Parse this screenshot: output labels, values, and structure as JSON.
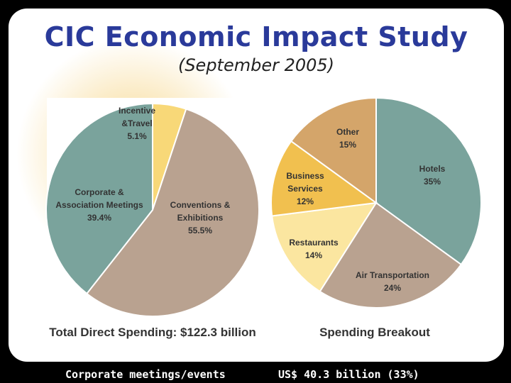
{
  "slide": {
    "title": "CIC Economic Impact Study",
    "subtitle": "(September 2005)",
    "footer_left": "Corporate meetings/events",
    "footer_right": "US$ 40.3 billion (33%)"
  },
  "chart_data": [
    {
      "type": "pie",
      "title": "Total Direct Spending: $122.3 billion",
      "slices": [
        {
          "name": "Incentive &Travel",
          "value": 5.1,
          "label_lines": [
            "Incentive",
            "&Travel",
            "5.1%"
          ],
          "color": "#f8d878"
        },
        {
          "name": "Conventions & Exhibitions",
          "value": 55.5,
          "label_lines": [
            "Conventions &",
            "Exhibitions",
            "55.5%"
          ],
          "color": "#b9a290"
        },
        {
          "name": "Corporate & Association Meetings",
          "value": 39.4,
          "label_lines": [
            "Corporate &",
            "Association Meetings",
            "39.4%"
          ],
          "color": "#7aa39c"
        }
      ]
    },
    {
      "type": "pie",
      "title": "Spending Breakout",
      "slices": [
        {
          "name": "Hotels",
          "value": 35,
          "label_lines": [
            "Hotels",
            "35%"
          ],
          "color": "#7aa39c"
        },
        {
          "name": "Air Transportation",
          "value": 24,
          "label_lines": [
            "Air Transportation",
            "24%"
          ],
          "color": "#b9a290"
        },
        {
          "name": "Restaurants",
          "value": 14,
          "label_lines": [
            "Restaurants",
            "14%"
          ],
          "color": "#fbe6a0"
        },
        {
          "name": "Business Services",
          "value": 12,
          "label_lines": [
            "Business",
            "Services",
            "12%"
          ],
          "color": "#f1c04f"
        },
        {
          "name": "Other",
          "value": 15,
          "label_lines": [
            "Other",
            "15%"
          ],
          "color": "#d4a56a"
        }
      ]
    }
  ]
}
